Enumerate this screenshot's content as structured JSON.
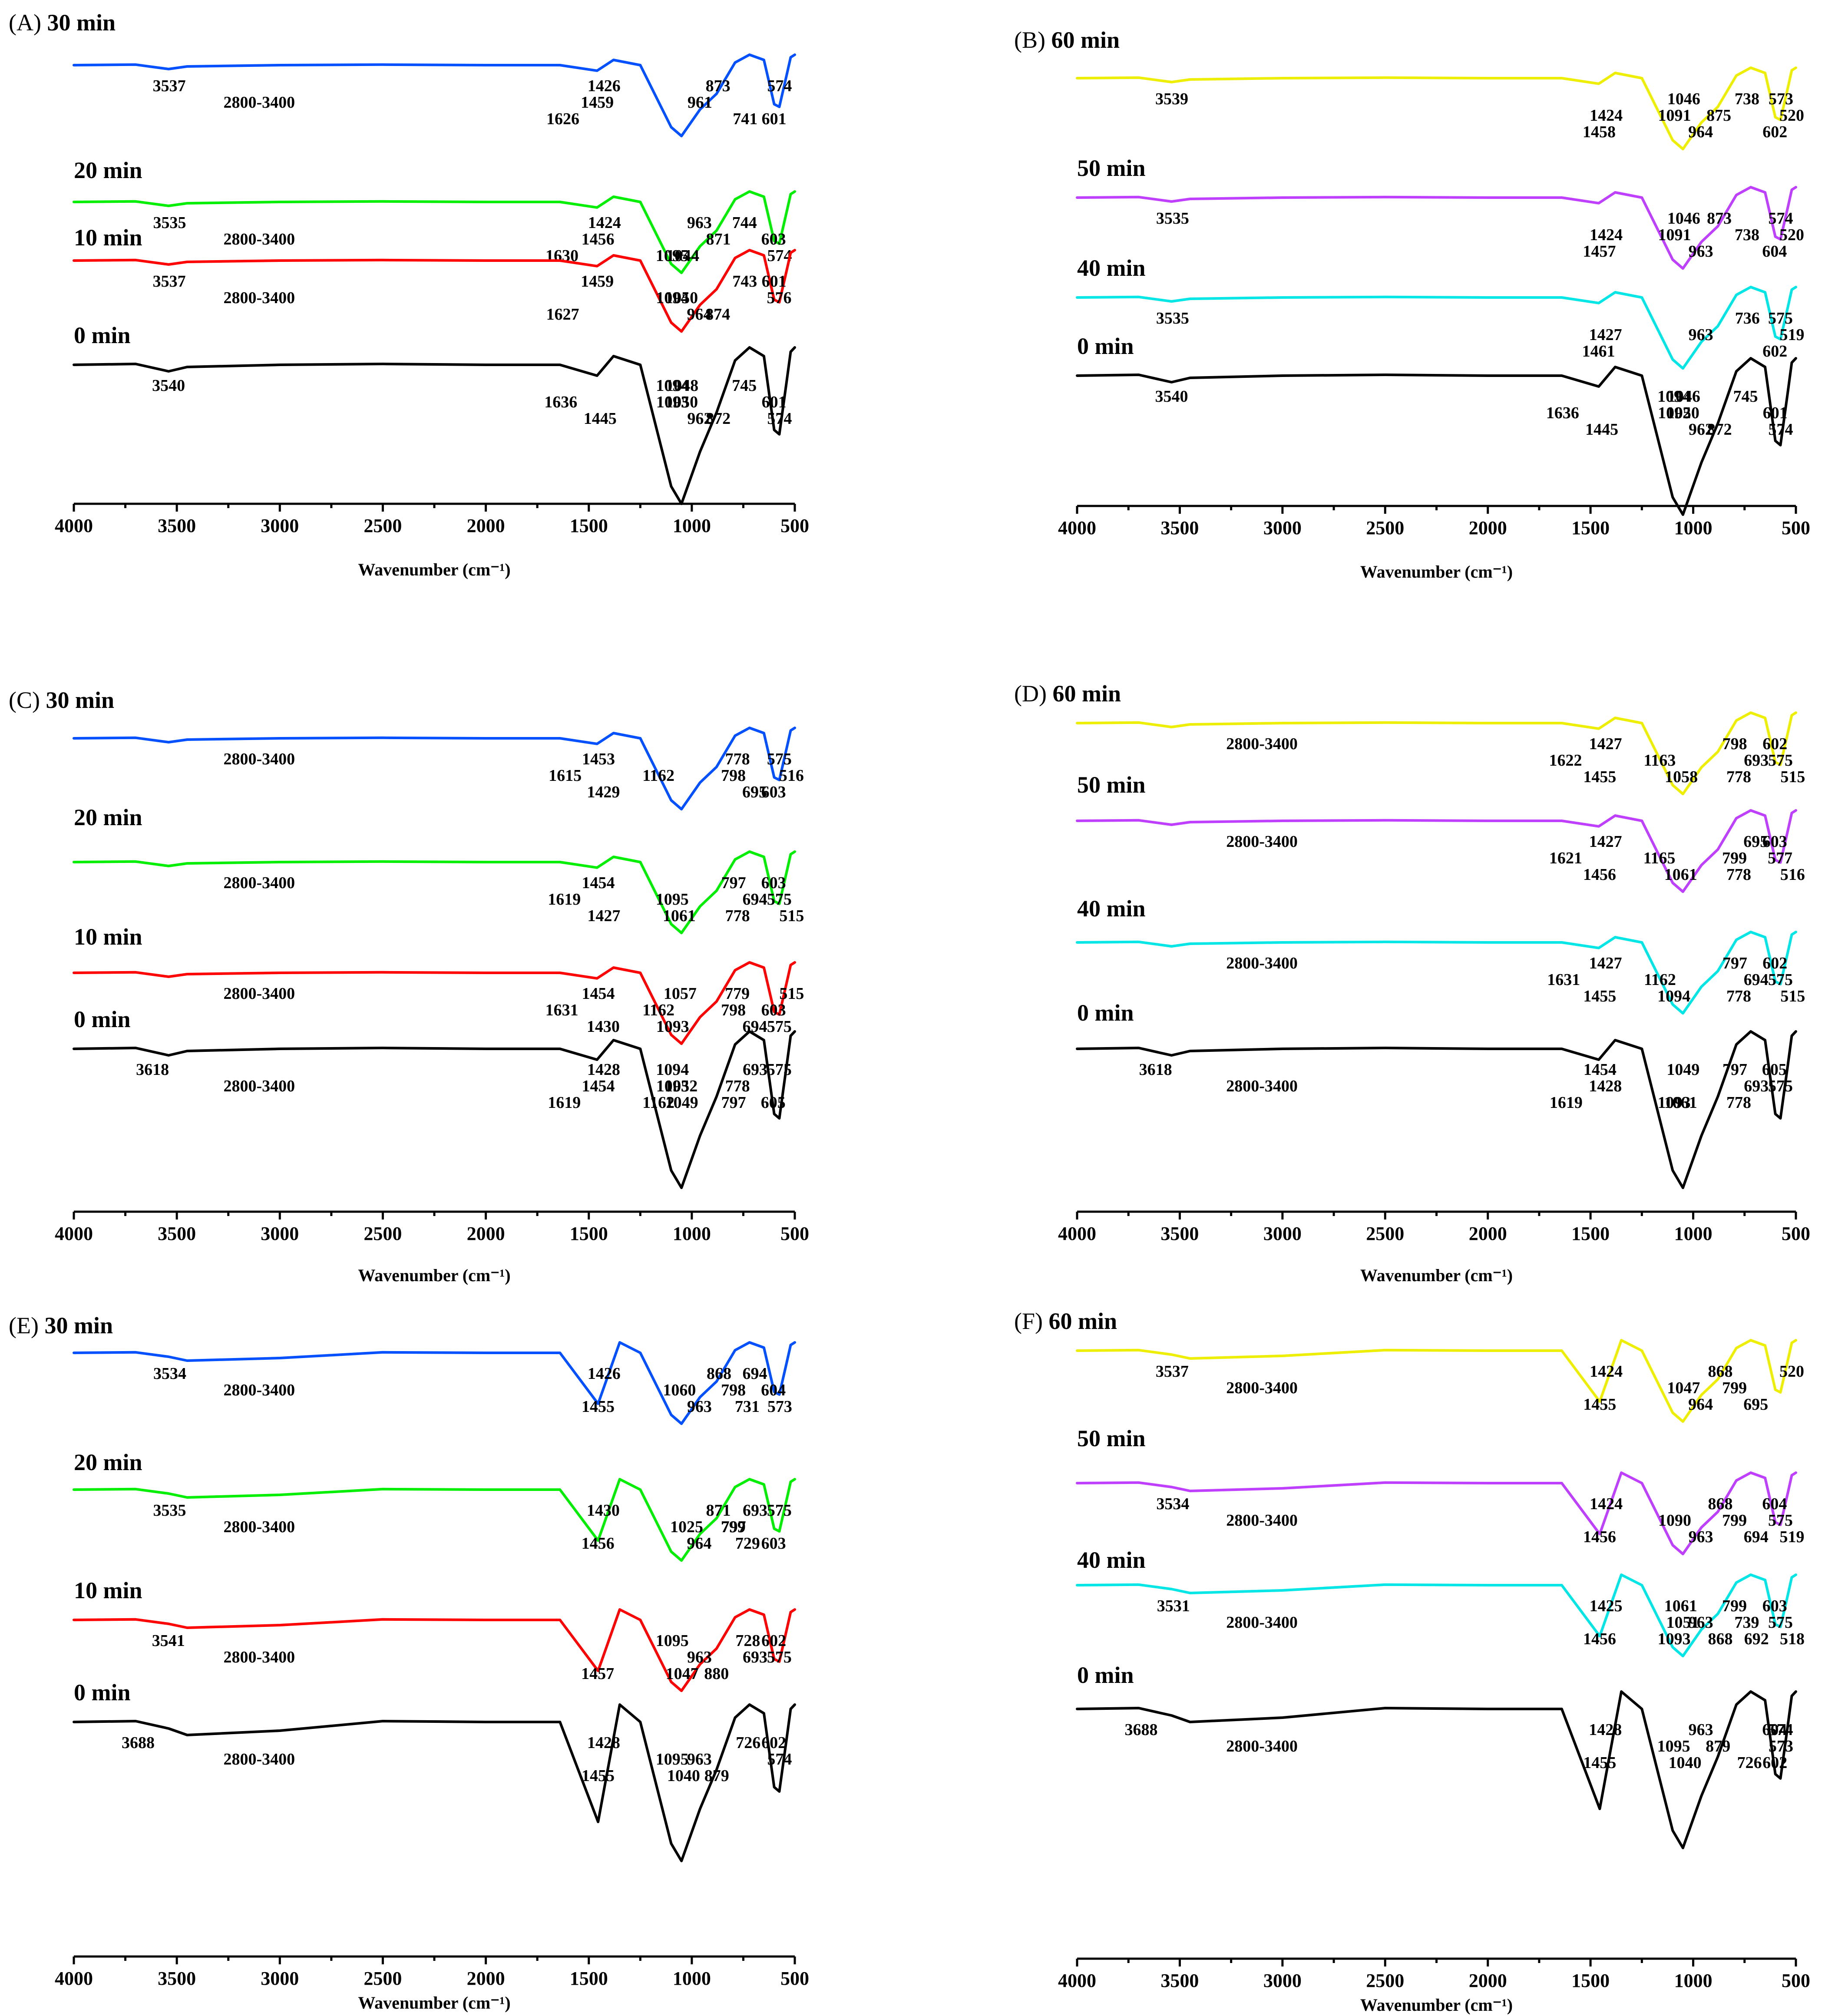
{
  "figure": {
    "axis_ticks": [
      "4000",
      "3500",
      "3000",
      "2500",
      "2000",
      "1500",
      "1000",
      "500"
    ],
    "xlabel": "Wavenumber (cm⁻¹)"
  },
  "colors": {
    "0 min": "#000000",
    "10 min": "#ff0000",
    "20 min": "#00ee00",
    "30 min": "#0050ff",
    "40 min": "#00e6e6",
    "50 min": "#bf3fff",
    "60 min": "#eeee00"
  },
  "chart_data": [
    {
      "panel": "(A)",
      "type": "line",
      "title": "30 min",
      "xlabel": "Wavenumber (cm⁻¹)",
      "xlim": [
        4000,
        500
      ],
      "x_inverted": true,
      "series": [
        {
          "name": "30 min",
          "color": "#0050ff",
          "peaks": [
            "3537",
            "2800-3400",
            "1626",
            "1426",
            "1459",
            "741",
            "873",
            "961",
            "601",
            "574"
          ]
        },
        {
          "name": "20 min",
          "color": "#00ee00",
          "peaks": [
            "3535",
            "2800-3400",
            "1630",
            "1424",
            "1456",
            "1044",
            "963",
            "871",
            "1095",
            "744",
            "603",
            "574"
          ]
        },
        {
          "name": "10 min",
          "color": "#ff0000",
          "peaks": [
            "3537",
            "2800-3400",
            "1627",
            "1459",
            "1050",
            "874",
            "743",
            "1094",
            "964",
            "601",
            "576"
          ]
        },
        {
          "name": "0 min",
          "color": "#000000",
          "peaks": [
            "3540",
            "1636",
            "1445",
            "1048",
            "1093",
            "872",
            "745",
            "1050",
            "962",
            "1094",
            "601",
            "574"
          ]
        }
      ]
    },
    {
      "panel": "(B)",
      "type": "line",
      "title": "60 min",
      "xlabel": "Wavenumber (cm⁻¹)",
      "xlim": [
        4000,
        500
      ],
      "x_inverted": true,
      "series": [
        {
          "name": "60 min",
          "color": "#eeee00",
          "peaks": [
            "3539",
            "1424",
            "1458",
            "738",
            "875",
            "964",
            "1046",
            "1091",
            "602",
            "573",
            "520"
          ]
        },
        {
          "name": "50 min",
          "color": "#bf3fff",
          "peaks": [
            "3535",
            "1424",
            "1457",
            "873",
            "738",
            "963",
            "1046",
            "1091",
            "604",
            "574",
            "520"
          ]
        },
        {
          "name": "40 min",
          "color": "#00e6e6",
          "peaks": [
            "3535",
            "1427",
            "1461",
            "736",
            "963",
            "602",
            "575",
            "519"
          ]
        },
        {
          "name": "0 min",
          "color": "#000000",
          "peaks": [
            "3540",
            "1636",
            "1445",
            "1046",
            "1092",
            "872",
            "745",
            "1050",
            "962",
            "1094",
            "601",
            "574"
          ]
        }
      ]
    },
    {
      "panel": "(C)",
      "type": "line",
      "title": "30 min",
      "xlabel": "Wavenumber (cm⁻¹)",
      "xlim": [
        4000,
        500
      ],
      "x_inverted": true,
      "series": [
        {
          "name": "30 min",
          "color": "#0050ff",
          "peaks": [
            "2800-3400",
            "1615",
            "1429",
            "1453",
            "1162",
            "695",
            "778",
            "798",
            "603",
            "575",
            "516"
          ]
        },
        {
          "name": "20 min",
          "color": "#00ee00",
          "peaks": [
            "2800-3400",
            "1619",
            "1427",
            "1454",
            "1095",
            "1061",
            "797",
            "694",
            "778",
            "603",
            "575",
            "515"
          ]
        },
        {
          "name": "10 min",
          "color": "#ff0000",
          "peaks": [
            "2800-3400",
            "1631",
            "1430",
            "1454",
            "1162",
            "1093",
            "1057",
            "798",
            "694",
            "779",
            "603",
            "575",
            "515"
          ]
        },
        {
          "name": "0 min",
          "color": "#000000",
          "peaks": [
            "3618",
            "2800-3400",
            "1619",
            "1428",
            "1454",
            "1162",
            "1094",
            "1052",
            "797",
            "693",
            "778",
            "605",
            "575",
            "1093",
            "1049"
          ]
        }
      ]
    },
    {
      "panel": "(D)",
      "type": "line",
      "title": "60 min",
      "xlabel": "Wavenumber (cm⁻¹)",
      "xlim": [
        4000,
        500
      ],
      "x_inverted": true,
      "series": [
        {
          "name": "60 min",
          "color": "#eeee00",
          "peaks": [
            "2800-3400",
            "1622",
            "1455",
            "1427",
            "1163",
            "1058",
            "798",
            "693",
            "778",
            "602",
            "575",
            "515"
          ]
        },
        {
          "name": "50 min",
          "color": "#bf3fff",
          "peaks": [
            "2800-3400",
            "1621",
            "1456",
            "1427",
            "1165",
            "1061",
            "695",
            "799",
            "778",
            "603",
            "577",
            "516"
          ]
        },
        {
          "name": "40 min",
          "color": "#00e6e6",
          "peaks": [
            "2800-3400",
            "1631",
            "1455",
            "1427",
            "1162",
            "1094",
            "797",
            "694",
            "778",
            "602",
            "575",
            "515"
          ]
        },
        {
          "name": "0 min",
          "color": "#000000",
          "peaks": [
            "3618",
            "2800-3400",
            "1619",
            "1454",
            "1428",
            "1061",
            "797",
            "693",
            "778",
            "605",
            "575",
            "1093",
            "1049"
          ]
        }
      ]
    },
    {
      "panel": "(E)",
      "type": "line",
      "title": "30 min",
      "xlabel": "Wavenumber (cm⁻¹)",
      "xlim": [
        4000,
        500
      ],
      "x_inverted": true,
      "series": [
        {
          "name": "30 min",
          "color": "#0050ff",
          "peaks": [
            "3534",
            "2800-3400",
            "1455",
            "1426",
            "1060",
            "963",
            "868",
            "798",
            "731",
            "694",
            "604",
            "573"
          ]
        },
        {
          "name": "20 min",
          "color": "#00ee00",
          "peaks": [
            "3535",
            "2800-3400",
            "1456",
            "1430",
            "1025",
            "964",
            "871",
            "799",
            "729",
            "693",
            "797",
            "603",
            "575"
          ]
        },
        {
          "name": "10 min",
          "color": "#ff0000",
          "peaks": [
            "3541",
            "2800-3400",
            "1457",
            "1095",
            "963",
            "880",
            "728",
            "693",
            "1047",
            "602",
            "575"
          ]
        },
        {
          "name": "0 min",
          "color": "#000000",
          "peaks": [
            "3688",
            "2800-3400",
            "1455",
            "1428",
            "963",
            "879",
            "726",
            "1095",
            "1040",
            "602",
            "574"
          ]
        }
      ]
    },
    {
      "panel": "(F)",
      "type": "line",
      "title": "60 min",
      "xlabel": "Wavenumber (cm⁻¹)",
      "xlim": [
        4000,
        500
      ],
      "x_inverted": true,
      "series": [
        {
          "name": "60 min",
          "color": "#eeee00",
          "peaks": [
            "3537",
            "2800-3400",
            "1455",
            "1424",
            "1047",
            "964",
            "868",
            "799",
            "695",
            "520"
          ]
        },
        {
          "name": "50 min",
          "color": "#bf3fff",
          "peaks": [
            "3534",
            "2800-3400",
            "1456",
            "1424",
            "1090",
            "963",
            "868",
            "799",
            "694",
            "604",
            "575",
            "519"
          ]
        },
        {
          "name": "40 min",
          "color": "#00e6e6",
          "peaks": [
            "3531",
            "2800-3400",
            "1456",
            "1425",
            "1051",
            "1093",
            "1061",
            "963",
            "868",
            "799",
            "739",
            "692",
            "603",
            "575",
            "518"
          ]
        },
        {
          "name": "0 min",
          "color": "#000000",
          "peaks": [
            "3688",
            "2800-3400",
            "1455",
            "1428",
            "1095",
            "1040",
            "963",
            "879",
            "726",
            "604",
            "573",
            "602",
            "574"
          ]
        }
      ]
    }
  ]
}
